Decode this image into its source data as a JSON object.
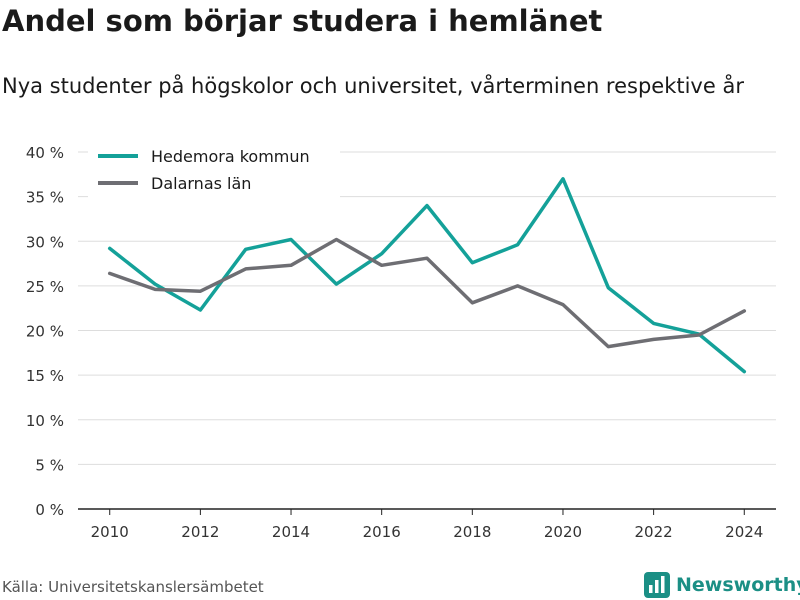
{
  "header": {
    "title": "Andel som börjar studera i hemlänet",
    "subtitle": "Nya studenter på högskolor och universitet, vårterminen respektive år"
  },
  "footer": {
    "source": "Källa: Universitetskanslersämbetet",
    "brand": "Newsworthy",
    "brand_icon": "bar-chart-logo-icon"
  },
  "chart_data": {
    "type": "line",
    "x": [
      2010,
      2011,
      2012,
      2013,
      2014,
      2015,
      2016,
      2017,
      2018,
      2019,
      2020,
      2021,
      2022,
      2023,
      2024
    ],
    "series": [
      {
        "name": "Hedemora kommun",
        "color": "#14a199",
        "values": [
          29.2,
          25.2,
          22.3,
          29.1,
          30.2,
          25.2,
          28.6,
          34.0,
          27.6,
          29.6,
          37.0,
          24.8,
          20.8,
          19.6,
          15.4
        ]
      },
      {
        "name": "Dalarnas län",
        "color": "#6e6e73",
        "values": [
          26.4,
          24.6,
          24.4,
          26.9,
          27.3,
          30.2,
          27.3,
          28.1,
          23.1,
          25.0,
          22.9,
          18.2,
          19.0,
          19.5,
          22.2
        ]
      }
    ],
    "xticks": [
      "2010",
      "2012",
      "2014",
      "2016",
      "2018",
      "2020",
      "2022",
      "2024"
    ],
    "yticks": [
      "0 %",
      "5 %",
      "10 %",
      "15 %",
      "20 %",
      "25 %",
      "30 %",
      "35 %",
      "40 %"
    ],
    "ylim": [
      0,
      40
    ],
    "xlim": [
      2009.3,
      2024.7
    ],
    "grid": true,
    "legend": "top-left"
  }
}
